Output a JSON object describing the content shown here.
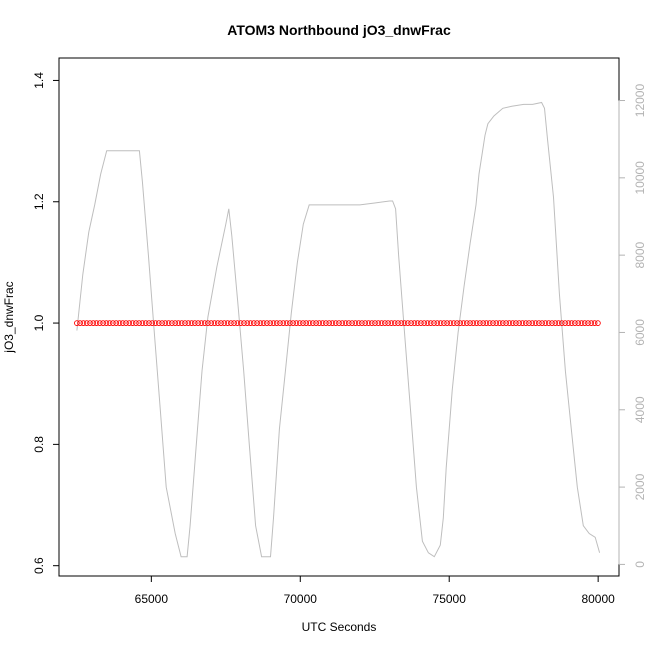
{
  "chart_data": {
    "type": "scatter",
    "title": "ATOM3 Northbound jO3_dnwFrac",
    "xlabel": "UTC Seconds",
    "ylabel": "jO3_dnwFrac",
    "y2label": "",
    "xlim": [
      61900,
      80700
    ],
    "ylim": [
      0.583,
      1.437
    ],
    "y2lim": [
      -300,
      13100
    ],
    "x_ticks": [
      65000,
      70000,
      75000,
      80000
    ],
    "y_ticks": [
      0.6,
      0.8,
      1.0,
      1.2,
      1.4
    ],
    "y2_ticks": [
      0,
      2000,
      4000,
      6000,
      8000,
      10000,
      12000
    ],
    "grid": false,
    "legend": "none",
    "colors": {
      "points": "#ff0000",
      "altitude_line": "#bebebe",
      "right_axis_text": "#b3b3b3"
    },
    "series": [
      {
        "axis": "left",
        "style": "open-circles",
        "x_start": 62500,
        "x_end": 80050,
        "x_step": 110,
        "value": 1.0
      },
      {
        "axis": "right",
        "style": "line",
        "x": [
          62500,
          62700,
          62900,
          63100,
          63300,
          63500,
          63700,
          64000,
          64300,
          64600,
          64700,
          64900,
          65100,
          65300,
          65500,
          65800,
          66000,
          66200,
          66300,
          66500,
          66700,
          66900,
          67200,
          67500,
          67600,
          67700,
          67900,
          68100,
          68300,
          68500,
          68700,
          68800,
          69000,
          69100,
          69300,
          69500,
          69700,
          69900,
          70100,
          70300,
          70500,
          70700,
          71000,
          71500,
          72000,
          72500,
          73000,
          73100,
          73200,
          73300,
          73500,
          73700,
          73900,
          74100,
          74300,
          74500,
          74700,
          74800,
          74900,
          75100,
          75300,
          75500,
          75700,
          75900,
          76000,
          76200,
          76300,
          76500,
          76800,
          77100,
          77500,
          77800,
          78100,
          78200,
          78300,
          78500,
          78700,
          78900,
          79100,
          79300,
          79500,
          79700,
          79900,
          80050
        ],
        "y": [
          6050,
          7500,
          8600,
          9300,
          10100,
          10700,
          10700,
          10700,
          10700,
          10700,
          9900,
          8000,
          6000,
          4000,
          2000,
          800,
          200,
          200,
          1000,
          3000,
          5000,
          6400,
          7700,
          8800,
          9200,
          8500,
          6800,
          5000,
          3000,
          1000,
          200,
          200,
          200,
          1200,
          3500,
          5000,
          6500,
          7800,
          8800,
          9300,
          9300,
          9300,
          9300,
          9300,
          9300,
          9350,
          9400,
          9400,
          9200,
          8000,
          6000,
          4000,
          2000,
          600,
          300,
          200,
          500,
          1200,
          2500,
          4500,
          6000,
          7200,
          8300,
          9300,
          10100,
          11100,
          11400,
          11600,
          11800,
          11850,
          11900,
          11900,
          11950,
          11800,
          11000,
          9500,
          7000,
          5000,
          3500,
          2000,
          1000,
          800,
          700,
          300
        ]
      }
    ]
  }
}
